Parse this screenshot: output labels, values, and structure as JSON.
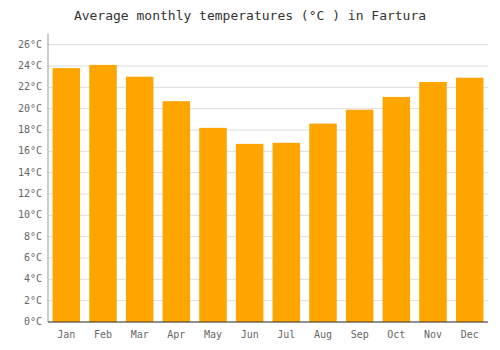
{
  "chart_data": {
    "type": "bar",
    "title": "Average monthly temperatures (°C ) in Fartura",
    "categories": [
      "Jan",
      "Feb",
      "Mar",
      "Apr",
      "May",
      "Jun",
      "Jul",
      "Aug",
      "Sep",
      "Oct",
      "Nov",
      "Dec"
    ],
    "values": [
      23.8,
      24.1,
      23.0,
      20.7,
      18.2,
      16.7,
      16.8,
      18.6,
      19.9,
      21.1,
      22.5,
      22.9
    ],
    "color": "#FFA500",
    "ylim": [
      0,
      27
    ],
    "yticks": [
      {
        "value": 0,
        "label": "0°C"
      },
      {
        "value": 2,
        "label": "2°C"
      },
      {
        "value": 4,
        "label": "4°C"
      },
      {
        "value": 6,
        "label": "6°C"
      },
      {
        "value": 8,
        "label": "8°C"
      },
      {
        "value": 10,
        "label": "10°C"
      },
      {
        "value": 12,
        "label": "12°C"
      },
      {
        "value": 14,
        "label": "14°C"
      },
      {
        "value": 16,
        "label": "16°C"
      },
      {
        "value": 18,
        "label": "18°C"
      },
      {
        "value": 20,
        "label": "20°C"
      },
      {
        "value": 22,
        "label": "22°C"
      },
      {
        "value": 24,
        "label": "24°C"
      },
      {
        "value": 26,
        "label": "26°C"
      }
    ],
    "grid": true
  }
}
